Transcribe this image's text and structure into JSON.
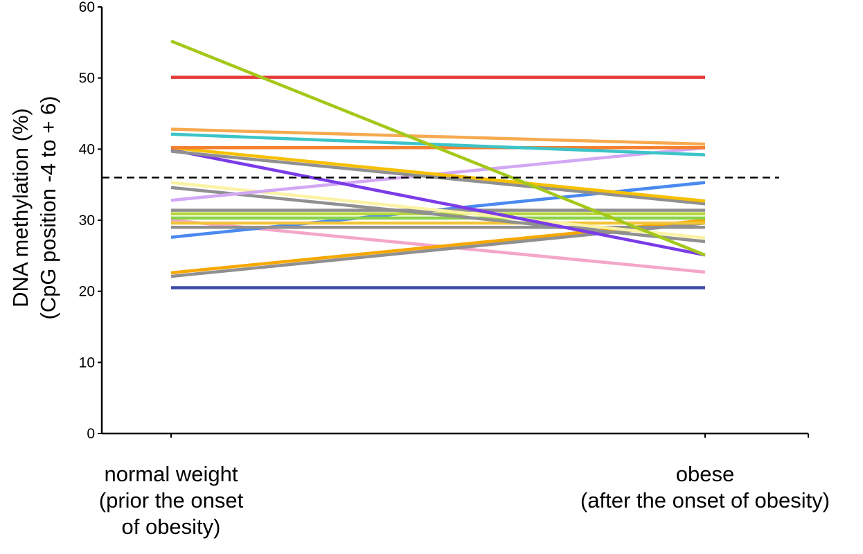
{
  "chart_data": {
    "type": "line",
    "categories": [
      [
        "normal weight",
        "(prior the onset",
        "of obesity)"
      ],
      [
        "obese",
        "(after the onset of obesity)"
      ]
    ],
    "ylabel": [
      "DNA methylation (%)",
      "(CpG position -4  to  + 6)"
    ],
    "ylim": [
      0,
      60
    ],
    "yticks": [
      0,
      10,
      20,
      30,
      40,
      50,
      60
    ],
    "grid": false,
    "reference_line": {
      "value": 36,
      "style": "dashed"
    },
    "series": [
      {
        "color": "#3d4aa8",
        "values": [
          20.5,
          20.5
        ]
      },
      {
        "color": "#f4a6c9",
        "values": [
          30,
          22.7
        ]
      },
      {
        "color": "#f6a800",
        "values": [
          22.6,
          30
        ]
      },
      {
        "color": "#909090",
        "values": [
          22.1,
          29.6
        ]
      },
      {
        "color": "#4a8af0",
        "values": [
          27.6,
          35.3
        ]
      },
      {
        "color": "#909090",
        "values": [
          29,
          29
        ]
      },
      {
        "color": "#f2c43a",
        "values": [
          29.6,
          29.6
        ]
      },
      {
        "color": "#8ad24a",
        "values": [
          30.3,
          30.3
        ]
      },
      {
        "color": "#b6d63a",
        "values": [
          30.9,
          30.9
        ]
      },
      {
        "color": "#909090",
        "values": [
          31.4,
          31.4
        ]
      },
      {
        "color": "#fbf3a4",
        "values": [
          35.3,
          27.5
        ]
      },
      {
        "color": "#909090",
        "values": [
          34.6,
          27
        ]
      },
      {
        "color": "#d2a8f4",
        "values": [
          32.8,
          40.2
        ]
      },
      {
        "color": "#7a3ce8",
        "values": [
          39.9,
          25.1
        ]
      },
      {
        "color": "#909090",
        "values": [
          39.7,
          32.3
        ]
      },
      {
        "color": "#f6c000",
        "values": [
          40.2,
          32.7
        ]
      },
      {
        "color": "#f48030",
        "values": [
          40.2,
          40.2
        ]
      },
      {
        "color": "#3cc4c8",
        "values": [
          42.1,
          39.2
        ]
      },
      {
        "color": "#f6aa50",
        "values": [
          42.8,
          40.7
        ]
      },
      {
        "color": "#e43a3a",
        "values": [
          50.1,
          50.1
        ]
      },
      {
        "color": "#a4c81a",
        "values": [
          55.2,
          25.1
        ]
      }
    ]
  }
}
